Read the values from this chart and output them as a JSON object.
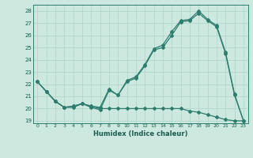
{
  "xlabel": "Humidex (Indice chaleur)",
  "xlim": [
    -0.5,
    23.5
  ],
  "ylim": [
    18.8,
    28.5
  ],
  "yticks": [
    19,
    20,
    21,
    22,
    23,
    24,
    25,
    26,
    27,
    28
  ],
  "xticks": [
    0,
    1,
    2,
    3,
    4,
    5,
    6,
    7,
    8,
    9,
    10,
    11,
    12,
    13,
    14,
    15,
    16,
    17,
    18,
    19,
    20,
    21,
    22,
    23
  ],
  "bg_color": "#cce8df",
  "line_color": "#2e7d6e",
  "grid_color": "#b0d8cc",
  "line1_y": [
    22.2,
    21.4,
    20.6,
    20.1,
    20.1,
    20.4,
    20.1,
    19.9,
    21.5,
    21.1,
    22.2,
    22.5,
    23.5,
    24.8,
    25.0,
    26.0,
    27.1,
    27.2,
    27.8,
    27.2,
    26.7,
    24.5,
    21.1,
    19.0
  ],
  "line2_y": [
    22.2,
    21.4,
    20.6,
    20.1,
    20.2,
    20.4,
    20.2,
    20.1,
    21.6,
    21.1,
    22.3,
    22.6,
    23.6,
    24.9,
    25.2,
    26.3,
    27.2,
    27.3,
    28.0,
    27.3,
    26.8,
    24.6,
    21.2,
    19.0
  ],
  "line3_y": [
    22.2,
    21.4,
    20.6,
    20.1,
    20.2,
    20.4,
    20.2,
    20.0,
    20.0,
    20.0,
    20.0,
    20.0,
    20.0,
    20.0,
    20.0,
    20.0,
    20.0,
    19.8,
    19.7,
    19.5,
    19.3,
    19.1,
    19.0,
    19.0
  ]
}
